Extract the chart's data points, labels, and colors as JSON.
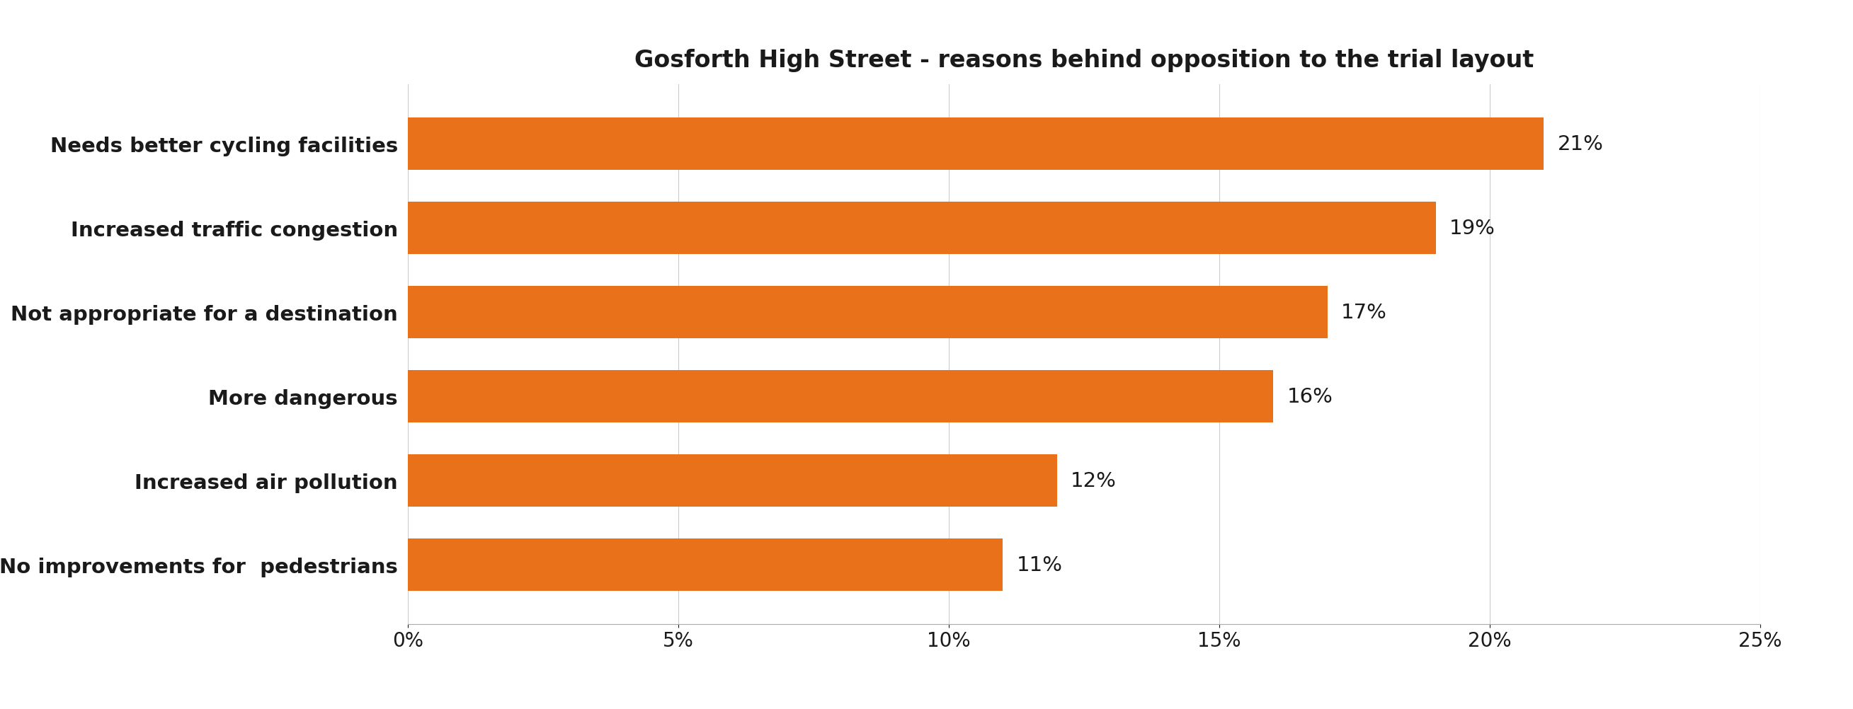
{
  "title": "Gosforth High Street - reasons behind opposition to the trial layout",
  "categories": [
    "No improvements for  pedestrians",
    "Increased air pollution",
    "More dangerous",
    "Not appropriate for a destination",
    "Increased traffic congestion",
    "Needs better cycling facilities"
  ],
  "values": [
    11,
    12,
    16,
    17,
    19,
    21
  ],
  "bar_color": "#E8711A",
  "label_color": "#1a1a1a",
  "background_color": "#ffffff",
  "title_fontsize": 24,
  "label_fontsize": 21,
  "tick_fontsize": 20,
  "value_fontsize": 21,
  "xlim": [
    0,
    25
  ],
  "xticks": [
    0,
    5,
    10,
    15,
    20,
    25
  ],
  "bar_height": 0.62,
  "ylim": [
    -0.7,
    5.7
  ]
}
